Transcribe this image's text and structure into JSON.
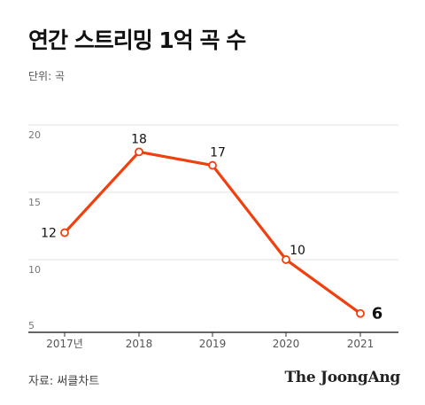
{
  "header": {
    "title": "연간 스트리밍 1억 곡 수",
    "unit": "단위: 곡"
  },
  "footer": {
    "source": "자료: 써클차트",
    "brand": "The JoongAng"
  },
  "colors": {
    "line": "#f0400f",
    "grid": "#e2e2e2",
    "axis": "#333333",
    "tick_text": "#777777"
  },
  "chart_data": {
    "type": "line",
    "categories": [
      "2017년",
      "2018",
      "2019",
      "2020",
      "2021"
    ],
    "series": [
      {
        "values": [
          12,
          18,
          17,
          10,
          6
        ]
      }
    ],
    "data_labels": [
      "12",
      "18",
      "17",
      "10",
      "6"
    ],
    "emphasized_label_index": 4,
    "yticks": [
      5,
      10,
      15,
      20
    ],
    "ytick_labels": [
      "5",
      "10",
      "15",
      "20"
    ],
    "ylim": [
      5,
      20
    ],
    "grid": true,
    "legend": "none"
  }
}
